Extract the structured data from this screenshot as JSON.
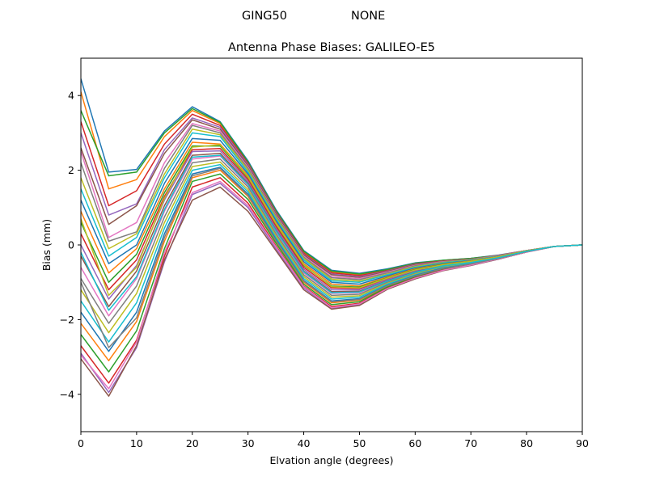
{
  "figure": {
    "suptitle_left": "GING50",
    "suptitle_right": "NONE"
  },
  "chart_data": {
    "type": "line",
    "title": "Antenna Phase Biases: GALILEO-E5",
    "xlabel": "Elvation angle (degrees)",
    "ylabel": "Bias (mm)",
    "xlim": [
      0,
      90
    ],
    "ylim": [
      -5,
      5
    ],
    "xticks": [
      0,
      10,
      20,
      30,
      40,
      50,
      60,
      70,
      80,
      90
    ],
    "yticks": [
      -4,
      -2,
      0,
      2,
      4
    ],
    "xtick_labels": [
      "0",
      "10",
      "20",
      "30",
      "40",
      "50",
      "60",
      "70",
      "80",
      "90"
    ],
    "ytick_labels": [
      "−4",
      "−2",
      "0",
      "2",
      "4"
    ],
    "grid": false,
    "legend": "none",
    "x": [
      0,
      5,
      10,
      15,
      20,
      25,
      30,
      35,
      40,
      45,
      50,
      55,
      60,
      65,
      70,
      75,
      80,
      85,
      90
    ],
    "color_cycle": [
      "#1f77b4",
      "#ff7f0e",
      "#2ca02c",
      "#d62728",
      "#9467bd",
      "#8c564b",
      "#e377c2",
      "#7f7f7f",
      "#bcbd22",
      "#17becf"
    ],
    "series": [
      {
        "values": [
          4.45,
          1.95,
          2.02,
          3.05,
          3.7,
          3.3,
          2.25,
          0.95,
          -0.15,
          -0.68,
          -0.76,
          -0.64,
          -0.48,
          -0.41,
          -0.36,
          -0.27,
          -0.15,
          -0.04,
          0.0
        ]
      },
      {
        "values": [
          4.1,
          1.5,
          1.75,
          2.9,
          3.6,
          3.25,
          2.2,
          0.9,
          -0.2,
          -0.72,
          -0.8,
          -0.67,
          -0.5,
          -0.42,
          -0.37,
          -0.28,
          -0.15,
          -0.04,
          0.0
        ]
      },
      {
        "values": [
          3.6,
          1.85,
          1.95,
          3.0,
          3.65,
          3.28,
          2.22,
          0.92,
          -0.17,
          -0.7,
          -0.78,
          -0.66,
          -0.49,
          -0.41,
          -0.36,
          -0.28,
          -0.15,
          -0.04,
          0.0
        ]
      },
      {
        "values": [
          3.3,
          1.05,
          1.45,
          2.7,
          3.5,
          3.2,
          2.18,
          0.88,
          -0.22,
          -0.75,
          -0.82,
          -0.69,
          -0.51,
          -0.43,
          -0.38,
          -0.28,
          -0.15,
          -0.04,
          0.0
        ]
      },
      {
        "values": [
          3.0,
          0.8,
          1.1,
          2.55,
          3.4,
          3.15,
          2.15,
          0.86,
          -0.25,
          -0.78,
          -0.85,
          -0.7,
          -0.52,
          -0.44,
          -0.38,
          -0.29,
          -0.15,
          -0.04,
          0.0
        ]
      },
      {
        "values": [
          2.6,
          0.55,
          1.05,
          2.45,
          3.35,
          3.1,
          2.12,
          0.84,
          -0.27,
          -0.8,
          -0.87,
          -0.71,
          -0.53,
          -0.44,
          -0.38,
          -0.29,
          -0.15,
          -0.04,
          0.0
        ]
      },
      {
        "values": [
          2.5,
          0.2,
          0.6,
          2.2,
          3.25,
          3.05,
          2.08,
          0.8,
          -0.3,
          -0.85,
          -0.9,
          -0.73,
          -0.55,
          -0.45,
          -0.39,
          -0.29,
          -0.15,
          -0.04,
          0.0
        ]
      },
      {
        "values": [
          2.2,
          0.1,
          0.35,
          2.05,
          3.2,
          3.0,
          2.05,
          0.78,
          -0.33,
          -0.88,
          -0.93,
          -0.75,
          -0.56,
          -0.46,
          -0.39,
          -0.3,
          -0.16,
          -0.04,
          0.0
        ]
      },
      {
        "values": [
          1.8,
          -0.1,
          0.3,
          1.9,
          3.1,
          2.95,
          2.0,
          0.74,
          -0.36,
          -0.92,
          -0.97,
          -0.78,
          -0.58,
          -0.47,
          -0.4,
          -0.3,
          -0.16,
          -0.04,
          0.0
        ]
      },
      {
        "values": [
          1.5,
          -0.3,
          0.2,
          1.8,
          3.0,
          2.9,
          1.95,
          0.7,
          -0.4,
          -0.96,
          -1.0,
          -0.8,
          -0.6,
          -0.48,
          -0.41,
          -0.3,
          -0.16,
          -0.04,
          0.0
        ]
      },
      {
        "values": [
          1.2,
          -0.5,
          0.0,
          1.65,
          2.85,
          2.8,
          1.9,
          0.65,
          -0.45,
          -1.0,
          -1.05,
          -0.83,
          -0.62,
          -0.5,
          -0.42,
          -0.31,
          -0.16,
          -0.04,
          0.0
        ]
      },
      {
        "values": [
          0.9,
          -0.75,
          -0.1,
          1.5,
          2.75,
          2.7,
          1.85,
          0.6,
          -0.5,
          -1.05,
          -1.1,
          -0.86,
          -0.64,
          -0.51,
          -0.43,
          -0.31,
          -0.16,
          -0.04,
          0.0
        ]
      },
      {
        "values": [
          0.6,
          -1.0,
          -0.25,
          1.4,
          2.65,
          2.65,
          1.8,
          0.55,
          -0.55,
          -1.1,
          -1.13,
          -0.88,
          -0.66,
          -0.52,
          -0.44,
          -0.32,
          -0.16,
          -0.04,
          0.0
        ]
      },
      {
        "values": [
          0.3,
          -1.2,
          -0.4,
          1.3,
          2.55,
          2.58,
          1.75,
          0.5,
          -0.6,
          -1.15,
          -1.17,
          -0.91,
          -0.68,
          -0.53,
          -0.45,
          -0.32,
          -0.17,
          -0.04,
          0.0
        ]
      },
      {
        "values": [
          0.0,
          -1.45,
          -0.55,
          1.2,
          2.5,
          2.52,
          1.7,
          0.45,
          -0.65,
          -1.2,
          -1.2,
          -0.93,
          -0.7,
          -0.54,
          -0.45,
          -0.33,
          -0.17,
          -0.04,
          0.0
        ]
      },
      {
        "values": [
          -0.3,
          -1.65,
          -0.7,
          1.05,
          2.4,
          2.45,
          1.65,
          0.4,
          -0.7,
          -1.25,
          -1.24,
          -0.96,
          -0.72,
          -0.56,
          -0.46,
          -0.33,
          -0.17,
          -0.04,
          0.0
        ]
      },
      {
        "values": [
          -0.6,
          -1.9,
          -0.9,
          0.9,
          2.3,
          2.38,
          1.6,
          0.35,
          -0.75,
          -1.3,
          -1.28,
          -0.98,
          -0.74,
          -0.57,
          -0.47,
          -0.34,
          -0.17,
          -0.04,
          0.0
        ]
      },
      {
        "values": [
          -0.9,
          -2.1,
          -1.1,
          0.75,
          2.2,
          2.3,
          1.55,
          0.3,
          -0.8,
          -1.35,
          -1.32,
          -1.0,
          -0.76,
          -0.58,
          -0.48,
          -0.34,
          -0.17,
          -0.04,
          0.0
        ]
      },
      {
        "values": [
          -1.2,
          -2.35,
          -1.3,
          0.6,
          2.1,
          2.22,
          1.48,
          0.25,
          -0.85,
          -1.4,
          -1.36,
          -1.03,
          -0.78,
          -0.6,
          -0.49,
          -0.35,
          -0.18,
          -0.04,
          0.0
        ]
      },
      {
        "values": [
          -1.5,
          -2.6,
          -1.55,
          0.45,
          2.0,
          2.15,
          1.42,
          0.2,
          -0.9,
          -1.45,
          -1.4,
          -1.05,
          -0.8,
          -0.61,
          -0.5,
          -0.35,
          -0.18,
          -0.04,
          0.0
        ]
      },
      {
        "values": [
          -1.8,
          -2.85,
          -1.8,
          0.3,
          1.9,
          2.08,
          1.36,
          0.15,
          -0.95,
          -1.5,
          -1.44,
          -1.08,
          -0.82,
          -0.62,
          -0.51,
          -0.36,
          -0.18,
          -0.04,
          0.0
        ]
      },
      {
        "values": [
          -2.1,
          -3.1,
          -2.05,
          0.1,
          1.8,
          2.0,
          1.3,
          0.1,
          -1.0,
          -1.55,
          -1.48,
          -1.11,
          -0.84,
          -0.64,
          -0.52,
          -0.36,
          -0.18,
          -0.04,
          0.0
        ]
      },
      {
        "values": [
          -2.4,
          -3.4,
          -2.3,
          -0.1,
          1.7,
          1.9,
          1.22,
          0.05,
          -1.05,
          -1.6,
          -1.52,
          -1.13,
          -0.86,
          -0.65,
          -0.53,
          -0.37,
          -0.19,
          -0.04,
          0.0
        ]
      },
      {
        "values": [
          -2.7,
          -3.7,
          -2.55,
          -0.3,
          1.55,
          1.8,
          1.12,
          -0.02,
          -1.1,
          -1.65,
          -1.56,
          -1.16,
          -0.88,
          -0.67,
          -0.54,
          -0.37,
          -0.19,
          -0.04,
          0.0
        ]
      },
      {
        "values": [
          -2.9,
          -3.95,
          -2.75,
          -0.45,
          1.35,
          1.65,
          1.0,
          -0.1,
          -1.15,
          -1.7,
          -1.6,
          -1.18,
          -0.9,
          -0.68,
          -0.55,
          -0.38,
          -0.19,
          -0.04,
          0.0
        ]
      },
      {
        "values": [
          -3.05,
          -4.05,
          -2.7,
          -0.4,
          1.2,
          1.55,
          0.9,
          -0.15,
          -1.2,
          -1.72,
          -1.62,
          -1.19,
          -0.91,
          -0.69,
          -0.55,
          -0.38,
          -0.19,
          -0.04,
          0.0
        ]
      },
      {
        "values": [
          -2.95,
          -3.85,
          -2.6,
          -0.2,
          1.4,
          1.7,
          1.05,
          -0.05,
          -1.12,
          -1.68,
          -1.58,
          -1.17,
          -0.89,
          -0.68,
          -0.54,
          -0.37,
          -0.19,
          -0.04,
          0.0
        ]
      },
      {
        "values": [
          -1.0,
          -2.75,
          -1.95,
          0.2,
          1.85,
          2.05,
          1.33,
          0.12,
          -0.97,
          -1.52,
          -1.46,
          -1.09,
          -0.83,
          -0.63,
          -0.51,
          -0.36,
          -0.18,
          -0.04,
          0.0
        ]
      },
      {
        "values": [
          0.7,
          -1.35,
          -0.6,
          1.25,
          2.62,
          2.68,
          1.82,
          0.57,
          -0.53,
          -1.12,
          -1.15,
          -0.89,
          -0.67,
          -0.53,
          -0.44,
          -0.32,
          -0.16,
          -0.04,
          0.0
        ]
      },
      {
        "values": [
          -0.2,
          -1.75,
          -0.85,
          0.95,
          2.35,
          2.4,
          1.62,
          0.38,
          -0.72,
          -1.28,
          -1.26,
          -0.97,
          -0.73,
          -0.56,
          -0.47,
          -0.34,
          -0.17,
          -0.04,
          0.0
        ]
      }
    ]
  }
}
